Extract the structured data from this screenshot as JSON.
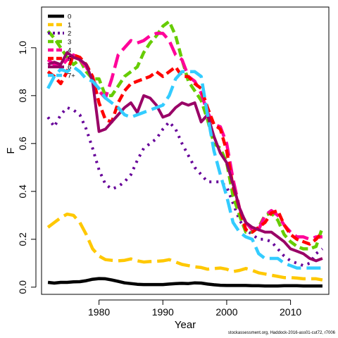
{
  "chart_data": {
    "type": "line",
    "xlabel": "Year",
    "ylabel": "F",
    "xlim": [
      1971,
      2016
    ],
    "ylim": [
      -0.03,
      1.17
    ],
    "x_ticks": [
      1980,
      1990,
      2000,
      2010
    ],
    "y_ticks": [
      0.0,
      0.2,
      0.4,
      0.6,
      0.8,
      1.0
    ],
    "y_tick_labels": [
      "0.0",
      "0.2",
      "0.4",
      "0.6",
      "0.8",
      "1.0"
    ],
    "legend_position": "top-left",
    "x": [
      1972,
      1973,
      1974,
      1975,
      1976,
      1977,
      1978,
      1979,
      1980,
      1981,
      1982,
      1983,
      1984,
      1985,
      1986,
      1987,
      1988,
      1989,
      1990,
      1991,
      1992,
      1993,
      1994,
      1995,
      1996,
      1997,
      1998,
      1999,
      2000,
      2001,
      2002,
      2003,
      2004,
      2005,
      2006,
      2007,
      2008,
      2009,
      2010,
      2011,
      2012,
      2013,
      2014,
      2015
    ],
    "series": [
      {
        "name": "0",
        "color": "#000000",
        "dash": "solid",
        "width": 4.5,
        "values": [
          0.02,
          0.017,
          0.02,
          0.02,
          0.022,
          0.023,
          0.027,
          0.033,
          0.036,
          0.035,
          0.03,
          0.024,
          0.018,
          0.015,
          0.012,
          0.011,
          0.011,
          0.011,
          0.011,
          0.013,
          0.015,
          0.016,
          0.015,
          0.018,
          0.017,
          0.013,
          0.01,
          0.008,
          0.007,
          0.007,
          0.007,
          0.007,
          0.006,
          0.006,
          0.005,
          0.005,
          0.005,
          0.006,
          0.006,
          0.006,
          0.005,
          0.005,
          0.005,
          0.005
        ]
      },
      {
        "name": "1",
        "color": "#ffc800",
        "dash": "long",
        "width": 4.5,
        "values": [
          0.25,
          0.27,
          0.29,
          0.305,
          0.3,
          0.27,
          0.22,
          0.16,
          0.13,
          0.115,
          0.112,
          0.11,
          0.112,
          0.118,
          0.11,
          0.105,
          0.107,
          0.108,
          0.11,
          0.115,
          0.105,
          0.095,
          0.09,
          0.085,
          0.082,
          0.075,
          0.078,
          0.08,
          0.075,
          0.065,
          0.07,
          0.078,
          0.07,
          0.06,
          0.055,
          0.05,
          0.045,
          0.04,
          0.04,
          0.038,
          0.035,
          0.035,
          0.035,
          0.03
        ]
      },
      {
        "name": "2",
        "color": "#660099",
        "dash": "dot",
        "width": 4,
        "values": [
          0.71,
          0.67,
          0.72,
          0.75,
          0.74,
          0.72,
          0.66,
          0.58,
          0.49,
          0.43,
          0.41,
          0.42,
          0.44,
          0.47,
          0.53,
          0.58,
          0.6,
          0.62,
          0.66,
          0.69,
          0.66,
          0.6,
          0.55,
          0.5,
          0.47,
          0.44,
          0.44,
          0.44,
          0.42,
          0.35,
          0.28,
          0.24,
          0.22,
          0.2,
          0.2,
          0.19,
          0.16,
          0.13,
          0.11,
          0.1,
          0.09,
          0.1,
          0.14,
          0.16
        ]
      },
      {
        "name": "3",
        "color": "#66cc00",
        "dash": "dash",
        "width": 4.5,
        "values": [
          1.07,
          1.04,
          1.0,
          0.96,
          0.93,
          0.95,
          0.9,
          0.87,
          0.87,
          0.8,
          0.8,
          0.84,
          0.88,
          0.9,
          0.92,
          0.98,
          1.02,
          1.05,
          1.09,
          1.11,
          1.05,
          0.95,
          0.86,
          0.82,
          0.78,
          0.7,
          0.6,
          0.58,
          0.52,
          0.38,
          0.3,
          0.23,
          0.23,
          0.25,
          0.3,
          0.31,
          0.28,
          0.22,
          0.19,
          0.17,
          0.16,
          0.16,
          0.17,
          0.25
        ]
      },
      {
        "name": "4",
        "color": "#ff0099",
        "dash": "long",
        "width": 4.5,
        "values": [
          0.95,
          0.93,
          0.92,
          0.95,
          0.97,
          0.95,
          0.92,
          0.87,
          0.82,
          0.79,
          0.87,
          0.97,
          1.0,
          1.03,
          1.02,
          1.03,
          1.05,
          1.06,
          1.06,
          1.03,
          0.97,
          0.95,
          0.88,
          0.86,
          0.81,
          0.73,
          0.68,
          0.67,
          0.6,
          0.45,
          0.33,
          0.27,
          0.24,
          0.24,
          0.3,
          0.32,
          0.3,
          0.26,
          0.23,
          0.21,
          0.21,
          0.2,
          0.21,
          0.21
        ]
      },
      {
        "name": "5",
        "color": "#ff0000",
        "dash": "dash",
        "width": 4.5,
        "values": [
          0.9,
          0.88,
          0.85,
          0.9,
          0.97,
          0.96,
          0.93,
          0.88,
          0.77,
          0.7,
          0.69,
          0.77,
          0.82,
          0.85,
          0.86,
          0.87,
          0.88,
          0.9,
          0.88,
          0.9,
          0.92,
          0.88,
          0.88,
          0.85,
          0.83,
          0.75,
          0.68,
          0.66,
          0.57,
          0.42,
          0.33,
          0.24,
          0.23,
          0.25,
          0.27,
          0.31,
          0.32,
          0.26,
          0.22,
          0.2,
          0.19,
          0.18,
          0.2,
          0.23
        ]
      },
      {
        "name": "6",
        "color": "#990066",
        "dash": "solid",
        "width": 4,
        "values": [
          0.93,
          0.94,
          0.93,
          0.98,
          0.96,
          0.95,
          0.93,
          0.86,
          0.65,
          0.66,
          0.69,
          0.72,
          0.75,
          0.77,
          0.73,
          0.8,
          0.79,
          0.76,
          0.71,
          0.72,
          0.75,
          0.77,
          0.76,
          0.77,
          0.69,
          0.72,
          0.63,
          0.56,
          0.52,
          0.43,
          0.33,
          0.27,
          0.25,
          0.24,
          0.23,
          0.23,
          0.21,
          0.19,
          0.16,
          0.15,
          0.14,
          0.12,
          0.11,
          0.12
        ]
      },
      {
        "name": "7+",
        "color": "#33ccff",
        "dash": "long",
        "width": 4.5,
        "values": [
          0.83,
          0.88,
          0.91,
          0.9,
          0.92,
          0.9,
          0.87,
          0.86,
          0.83,
          0.79,
          0.77,
          0.75,
          0.72,
          0.71,
          0.72,
          0.73,
          0.74,
          0.75,
          0.76,
          0.8,
          0.87,
          0.9,
          0.9,
          0.9,
          0.88,
          0.72,
          0.57,
          0.47,
          0.38,
          0.27,
          0.23,
          0.21,
          0.2,
          0.14,
          0.12,
          0.12,
          0.12,
          0.1,
          0.09,
          0.08,
          0.08,
          0.08,
          0.08,
          0.08
        ]
      }
    ]
  },
  "footnote": "stockassessment.org, Haddock-2016-ass01-cut72, r7006"
}
